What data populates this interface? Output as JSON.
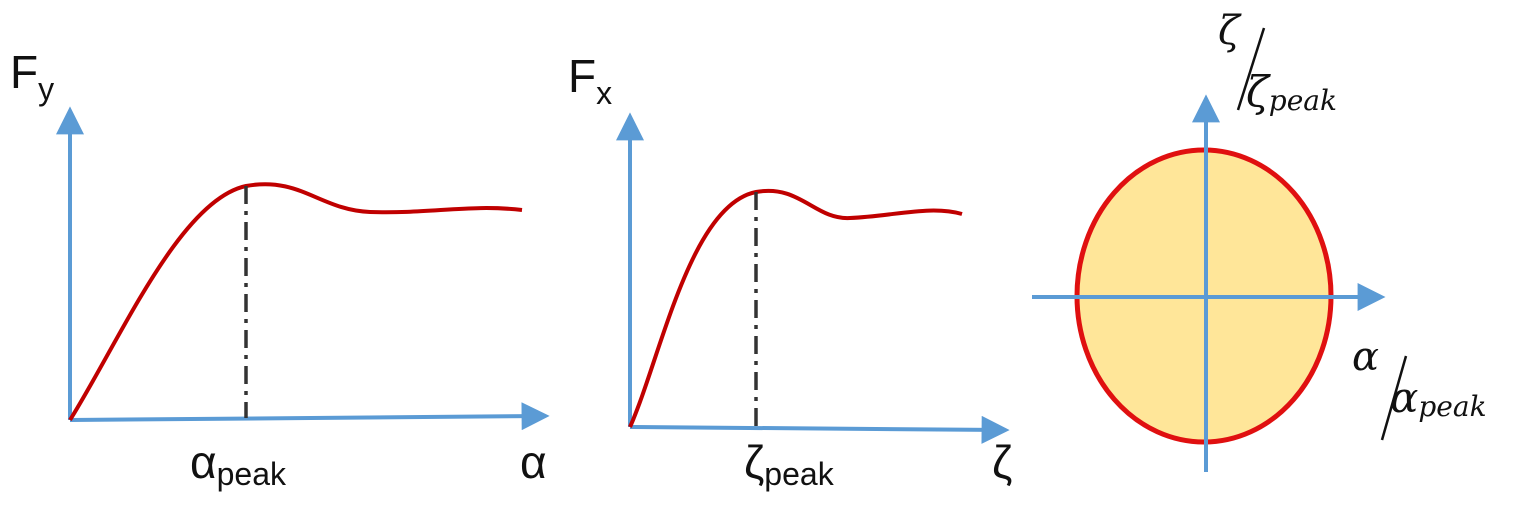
{
  "colors": {
    "axis": "#5b9bd5",
    "curve": "#c00000",
    "ellipse_fill": "#ffe699",
    "ellipse_stroke": "#e01010",
    "guide": "#333333"
  },
  "panel_lateral": {
    "y_label_main": "F",
    "y_label_sub": "y",
    "x_label": "α",
    "peak_label_main": "α",
    "peak_label_sub": "peak"
  },
  "panel_longitudinal": {
    "y_label_main": "F",
    "y_label_sub": "x",
    "x_label": "ζ",
    "peak_label_main": "ζ",
    "peak_label_sub": "peak"
  },
  "panel_ellipse": {
    "y_label_num": "ζ",
    "y_label_den_main": "ζ",
    "y_label_den_sub": "peak",
    "x_label_num": "α",
    "x_label_den_main": "α",
    "x_label_den_sub": "peak"
  }
}
